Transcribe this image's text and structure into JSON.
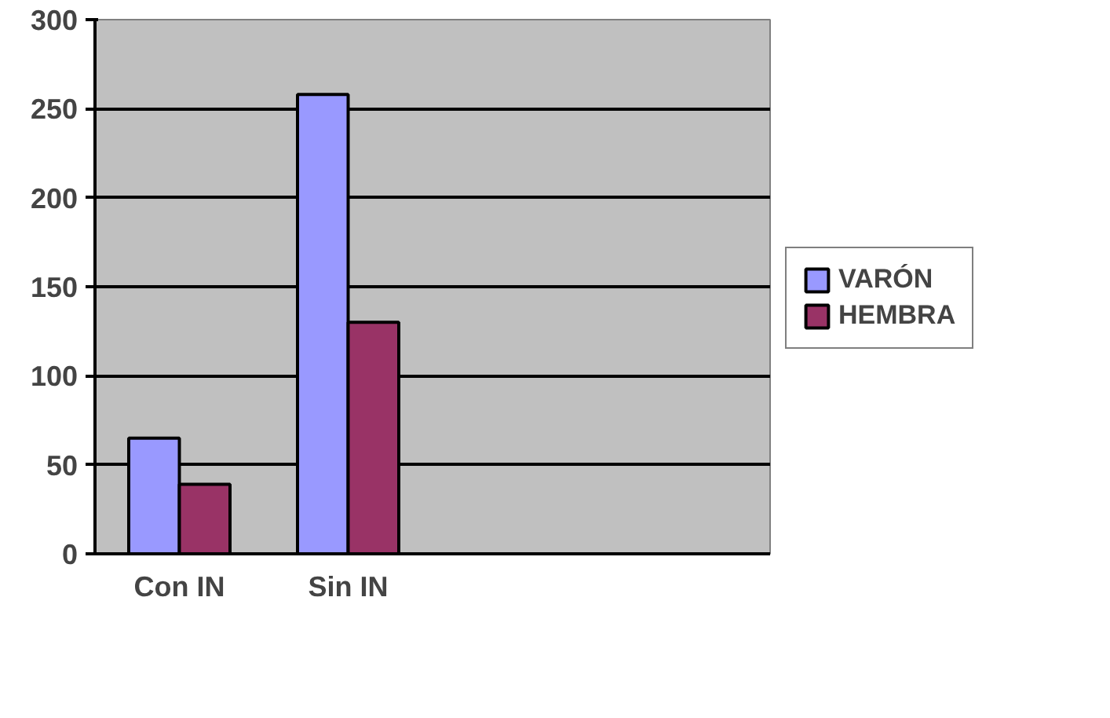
{
  "chart_data": {
    "type": "bar",
    "categories": [
      "Con IN",
      "Sin IN",
      null,
      null
    ],
    "series": [
      {
        "name": "VARÓN",
        "color": "#9999ff",
        "values": [
          65,
          258,
          null,
          null
        ]
      },
      {
        "name": "HEMBRA",
        "color": "#993366",
        "values": [
          39,
          130,
          null,
          null
        ]
      }
    ],
    "ylim": [
      0,
      300
    ],
    "yticks": [
      0,
      50,
      100,
      150,
      200,
      250,
      300
    ],
    "grid": "y",
    "legend": "right"
  }
}
